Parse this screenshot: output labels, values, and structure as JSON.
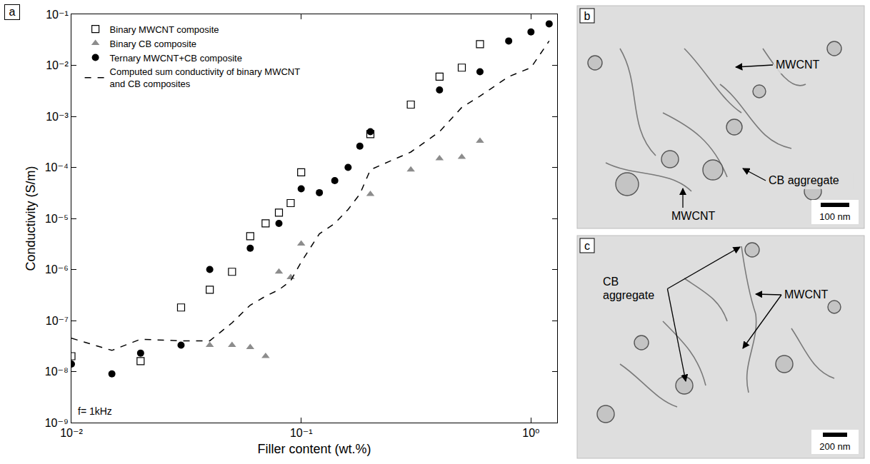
{
  "chart_data": {
    "type": "scatter",
    "label": "a",
    "x_label": "Filler content (wt.%)",
    "y_label": "Conductivity (S/m)",
    "log": true,
    "grid": false,
    "legend": "top-left",
    "xlim": [
      0.01,
      1.3
    ],
    "ylim": [
      1e-09,
      0.1
    ],
    "xticks": [
      {
        "value": 0.01,
        "label": "10⁻²"
      },
      {
        "value": 0.1,
        "label": "10⁻¹"
      },
      {
        "value": 1,
        "label": "10⁰"
      }
    ],
    "yticks": [
      {
        "value": 1e-09,
        "label": "10⁻⁹"
      },
      {
        "value": 1e-08,
        "label": "10⁻⁸"
      },
      {
        "value": 1e-07,
        "label": "10⁻⁷"
      },
      {
        "value": 1e-06,
        "label": "10⁻⁶"
      },
      {
        "value": 1e-05,
        "label": "10⁻⁵"
      },
      {
        "value": 0.0001,
        "label": "10⁻⁴"
      },
      {
        "value": 0.001,
        "label": "10⁻³"
      },
      {
        "value": 0.01,
        "label": "10⁻²"
      },
      {
        "value": 0.1,
        "label": "10⁻¹"
      }
    ],
    "annotations": [
      "f= 1kHz"
    ],
    "series": [
      {
        "name": "Binary MWCNT composite",
        "type": "scatter",
        "marker": "square-open",
        "color": "#000000",
        "x": [
          0.01,
          0.02,
          0.03,
          0.04,
          0.05,
          0.06,
          0.07,
          0.08,
          0.09,
          0.1,
          0.2,
          0.3,
          0.4,
          0.5,
          0.6
        ],
        "values": [
          2e-08,
          1.6e-08,
          1.8e-07,
          4e-07,
          9e-07,
          4.5e-06,
          8e-06,
          1.3e-05,
          2e-05,
          8e-05,
          0.00045,
          0.0017,
          0.006,
          0.009,
          0.026
        ]
      },
      {
        "name": "Binary CB composite",
        "type": "scatter",
        "marker": "triangle-up",
        "color": "#8c8c8c",
        "x": [
          0.04,
          0.05,
          0.06,
          0.07,
          0.08,
          0.09,
          0.1,
          0.2,
          0.3,
          0.4,
          0.5,
          0.6
        ],
        "values": [
          3.3e-08,
          3.3e-08,
          3e-08,
          2e-08,
          9e-07,
          7e-07,
          3.2e-06,
          3e-05,
          9e-05,
          0.00015,
          0.00016,
          0.00033
        ]
      },
      {
        "name": "Ternary MWCNT+CB composite",
        "type": "scatter",
        "marker": "circle",
        "color": "#000000",
        "x": [
          0.01,
          0.015,
          0.02,
          0.03,
          0.04,
          0.06,
          0.08,
          0.1,
          0.12,
          0.14,
          0.16,
          0.18,
          0.2,
          0.4,
          0.6,
          0.8,
          1.0,
          1.2
        ],
        "values": [
          1.4e-08,
          9e-09,
          2.3e-08,
          3.3e-08,
          1e-06,
          2.6e-06,
          8e-06,
          3.8e-05,
          3.2e-05,
          5.5e-05,
          0.0001,
          0.00026,
          0.0005,
          0.0033,
          0.0075,
          0.03,
          0.045,
          0.065
        ]
      },
      {
        "name": "Computed sum conductivity of binary MWCNT and CB composites",
        "type": "line",
        "line_style": "dashed",
        "color": "#000000",
        "x": [
          0.01,
          0.015,
          0.02,
          0.03,
          0.04,
          0.05,
          0.06,
          0.07,
          0.08,
          0.09,
          0.1,
          0.12,
          0.14,
          0.16,
          0.18,
          0.2,
          0.3,
          0.4,
          0.5,
          0.6,
          0.8,
          1.0,
          1.2
        ],
        "values": [
          4.5e-08,
          2.6e-08,
          4.3e-08,
          4e-08,
          4e-08,
          9e-08,
          2e-07,
          3e-07,
          4e-07,
          6e-07,
          1.4e-06,
          5e-06,
          8e-06,
          1.5e-05,
          3e-05,
          9e-05,
          0.0002,
          0.0005,
          0.0015,
          0.0025,
          0.006,
          0.009,
          0.03
        ]
      }
    ]
  },
  "micrographs": [
    {
      "label": "b",
      "annotations": [
        "MWCNT",
        "CB aggregate",
        "MWCNT"
      ],
      "scale_bar": "100 nm"
    },
    {
      "label": "c",
      "annotations": [
        "CB aggregate",
        "MWCNT"
      ],
      "scale_bar": "200 nm"
    }
  ]
}
